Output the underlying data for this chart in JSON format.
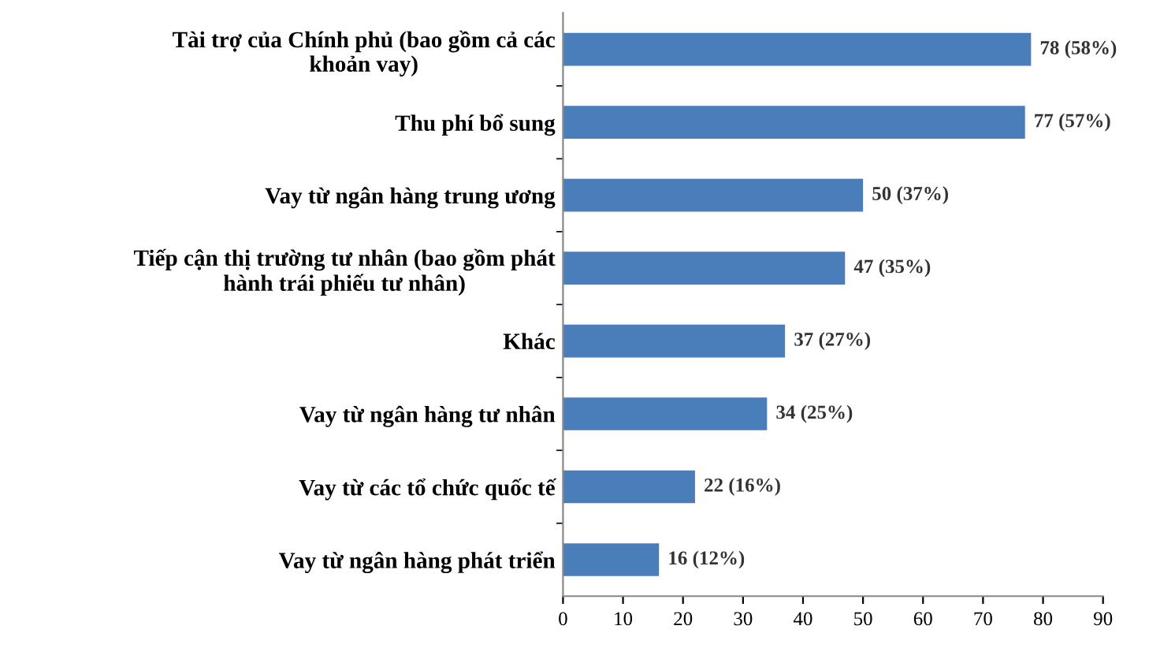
{
  "chart_data": {
    "type": "bar",
    "orientation": "horizontal",
    "categories": [
      "Tài trợ của Chính phủ (bao gồm cả các\nkhoản vay)",
      "Thu phí bổ sung",
      "Vay từ ngân hàng trung ương",
      "Tiếp cận thị trường tư nhân (bao gồm phát\nhành trái phiếu tư nhân)",
      "Khác",
      "Vay từ ngân hàng tư nhân",
      "Vay từ các tổ chức quốc tế",
      "Vay từ ngân hàng phát triển"
    ],
    "values": [
      78,
      77,
      50,
      47,
      37,
      34,
      22,
      16
    ],
    "value_labels": [
      "78 (58%)",
      "77 (57%)",
      "50 (37%)",
      "47 (35%)",
      "37 (27%)",
      "34 (25%)",
      "22 (16%)",
      "16 (12%)"
    ],
    "color": "#4a7ebb",
    "xlim": [
      0,
      90
    ],
    "xticks": [
      0,
      10,
      20,
      30,
      40,
      50,
      60,
      70,
      80,
      90
    ],
    "grid": false,
    "legend": false
  }
}
